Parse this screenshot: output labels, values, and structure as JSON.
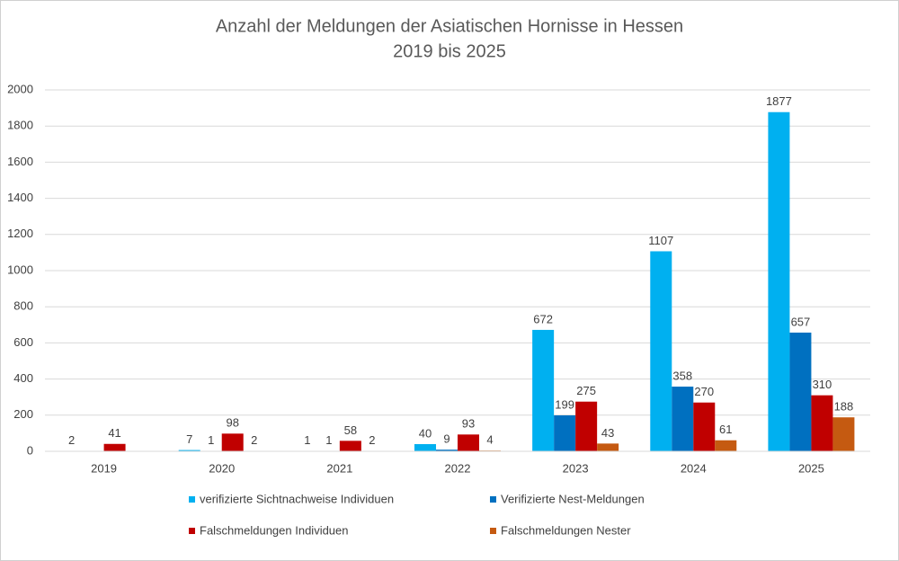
{
  "chart_data": {
    "type": "bar",
    "title": "Anzahl der Meldungen der Asiatischen Hornisse in Hessen",
    "subtitle": "2019 bis 2025",
    "categories": [
      "2019",
      "2020",
      "2021",
      "2022",
      "2023",
      "2024",
      "2025"
    ],
    "series": [
      {
        "name": "verifizierte Sichtnachweise Individuen",
        "color": "#00b0f0",
        "values": [
          2,
          7,
          1,
          40,
          672,
          1107,
          1877
        ]
      },
      {
        "name": "Verifizierte Nest-Meldungen",
        "color": "#0070c0",
        "values": [
          null,
          1,
          1,
          9,
          199,
          358,
          657
        ]
      },
      {
        "name": "Falschmeldungen Individuen",
        "color": "#c00000",
        "values": [
          41,
          98,
          58,
          93,
          275,
          270,
          310
        ]
      },
      {
        "name": "Falschmeldungen Nester",
        "color": "#c55a11",
        "values": [
          null,
          2,
          2,
          4,
          43,
          61,
          188
        ]
      }
    ],
    "ylim": [
      0,
      2000
    ],
    "yticks": [
      0,
      200,
      400,
      600,
      800,
      1000,
      1200,
      1400,
      1600,
      1800,
      2000
    ],
    "grid": true,
    "legend": "bottom"
  }
}
